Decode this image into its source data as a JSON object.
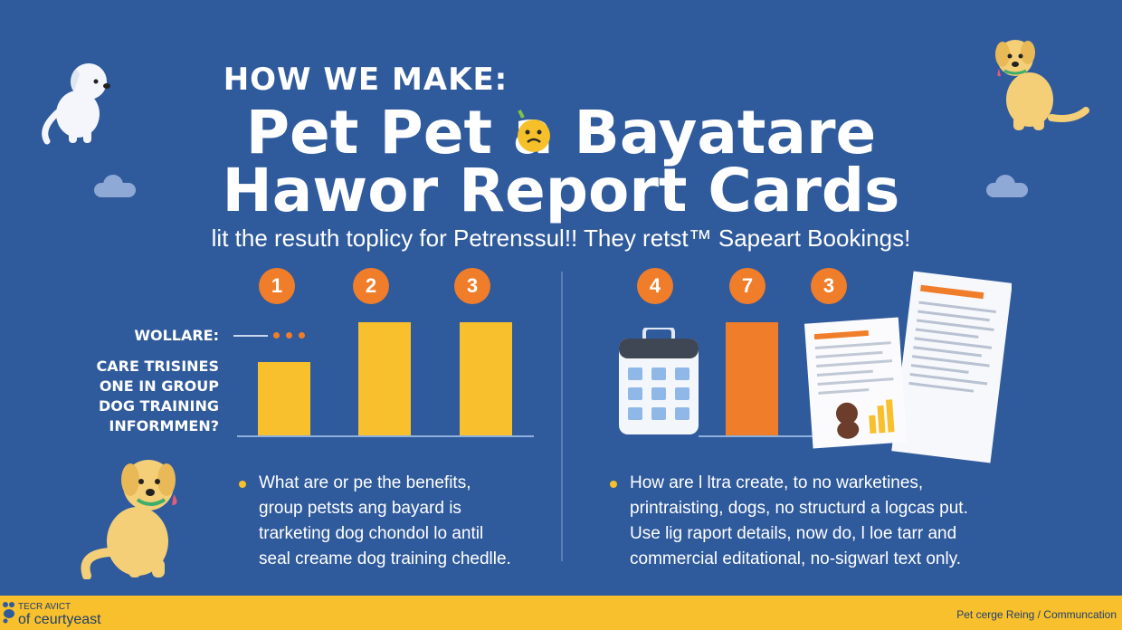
{
  "header": {
    "eyebrow": "HOW WE MAKE:",
    "title_line1": "Pet Pet a  Bayatare",
    "title_line2": "Hawor Report Cards",
    "subtitle": "lit the resuth toplicy for Petrenssul!! They retst™ Sapeart Bookings!"
  },
  "left_panel": {
    "step_numbers": [
      "1",
      "2",
      "3"
    ],
    "label_top": "WOLLARE:",
    "label_lines": [
      "CARE TRISINES",
      "ONE IN GROUP",
      "DOG TRAINING",
      "INFORMMEN?"
    ],
    "bullet_lines": [
      "What are or pe the benefits,",
      "group petsts ang bayard is",
      "trarketing dog chondol lo antil",
      "seal creame dog training chedlle."
    ]
  },
  "right_panel": {
    "step_numbers": [
      "4",
      "7",
      "3"
    ],
    "bullet_lines": [
      "How are l ltra create, to no warketines,",
      "printraisting, dogs, no structurd a logcas put.",
      "Use lig raport details, now do, l loe tarr and",
      "commercial editational, no-sigwarl text only."
    ]
  },
  "footer": {
    "left_small": "TECR AVICT",
    "left_big": "of ceurtyeast",
    "right": "Pet cerge Reing / Communcation"
  },
  "colors": {
    "background": "#2f5a9c",
    "accent_yellow": "#f8c02c",
    "accent_orange": "#f07d2a"
  }
}
